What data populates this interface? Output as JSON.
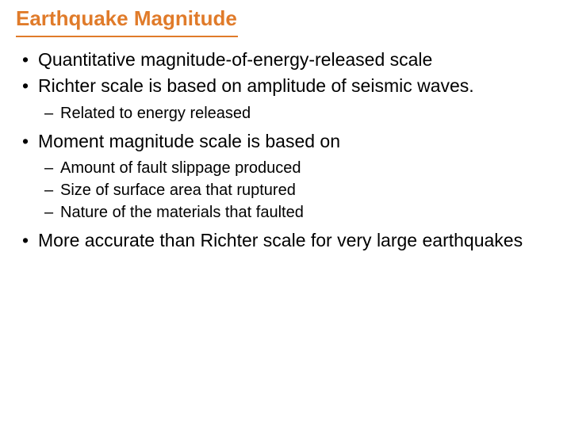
{
  "colors": {
    "title": "#e07b2a",
    "underline": "#e07b2a",
    "body": "#000000",
    "background": "#ffffff"
  },
  "title": "Earthquake Magnitude",
  "bullets": [
    {
      "text": "Quantitative magnitude-of-energy-released scale",
      "sub": []
    },
    {
      "text": "Richter scale is based on amplitude of seismic waves.",
      "sub": [
        "Related to energy released"
      ]
    },
    {
      "text": "Moment magnitude scale is based on",
      "sub": [
        "Amount of fault slippage produced",
        "Size of surface area that ruptured",
        "Nature of the materials that faulted"
      ]
    },
    {
      "text": "More accurate than Richter scale for very large earthquakes",
      "sub": []
    }
  ]
}
